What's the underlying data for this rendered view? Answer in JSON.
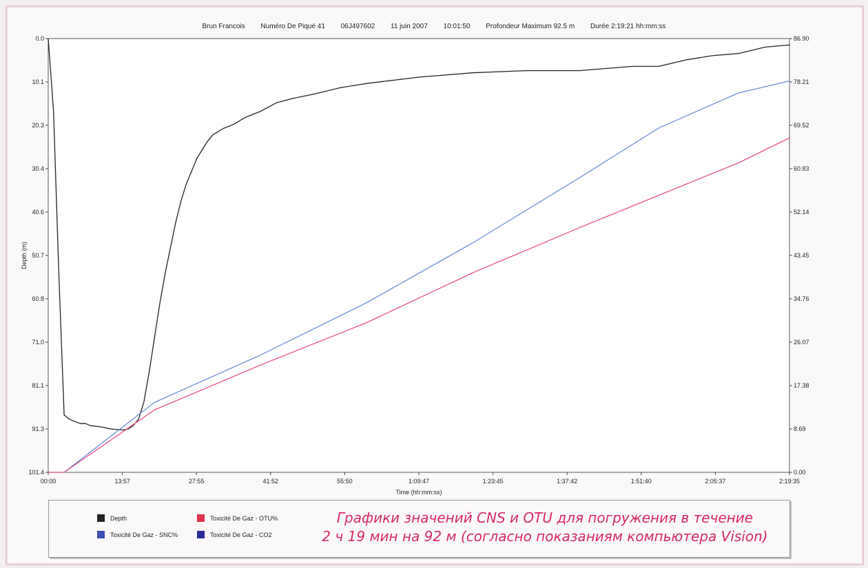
{
  "header": {
    "name": "Brun Francois",
    "dive_number": "Numéro De Piqué 41",
    "serial": "06J497602",
    "date": "11 juin 2007",
    "time": "10:01:50",
    "max_depth": "Profondeur Maximum 92.5 m",
    "duration": "Durée 2:19:21 hh:mm:ss"
  },
  "caption": {
    "line1": "Графики значений CNS и OTU для погружения в течение",
    "line2": "2 ч 19 мин на 92 м (согласно показаниям компьютера Vision)"
  },
  "legend": [
    {
      "label": "Depth",
      "color": "#222222"
    },
    {
      "label": "Toxicité De Gaz - OTU%",
      "color": "#e03050"
    },
    {
      "label": "Toxicité De Gaz - SNC%",
      "color": "#3a4fb0"
    },
    {
      "label": "Toxicité De Gaz - CO2",
      "color": "#2a2a9a"
    }
  ],
  "chart_data": {
    "type": "line",
    "xlabel": "Time (hh:mm:ss)",
    "ylabel": "Depth (m)",
    "x_ticks": [
      "00:00",
      "13:57",
      "27:55",
      "41:52",
      "55:50",
      "1:09:47",
      "1:23:45",
      "1:37:42",
      "1:51:40",
      "2:05:37",
      "2:19:35"
    ],
    "y_left_ticks": [
      "0.0",
      "10.1",
      "20.3",
      "30.4",
      "40.6",
      "50.7",
      "60.8",
      "71.0",
      "81.1",
      "91.3",
      "101.4"
    ],
    "y_left_range": [
      0,
      101.4
    ],
    "y_right_ticks": [
      "0.00",
      "8.69",
      "17.38",
      "26.07",
      "34.76",
      "43.45",
      "52.14",
      "60.83",
      "69.52",
      "78.21",
      "86.90"
    ],
    "y_right_range": [
      0,
      86.9
    ],
    "x_range_min": [
      0,
      139.58
    ],
    "series": [
      {
        "name": "Depth",
        "axis": "left",
        "color": "#222222",
        "x": [
          0,
          1,
          2,
          3,
          4,
          5,
          6,
          7,
          8,
          10,
          12,
          14,
          15,
          16,
          17,
          18,
          19,
          20,
          21,
          22,
          23,
          24,
          25,
          26,
          27,
          28,
          29,
          30,
          31,
          33,
          35,
          37,
          40,
          43,
          46,
          50,
          55,
          60,
          70,
          80,
          90,
          100,
          110,
          115,
          120,
          125,
          130,
          135,
          139.58
        ],
        "y": [
          0,
          17,
          55,
          88,
          89,
          89.5,
          90,
          90,
          90.5,
          90.8,
          91.3,
          91.5,
          91.3,
          90.5,
          89,
          85,
          78,
          70,
          62,
          55,
          49,
          43,
          38,
          34,
          31,
          28,
          26,
          24,
          22.5,
          21,
          20,
          18.5,
          17,
          15,
          14,
          13,
          11.5,
          10.5,
          9,
          8,
          7.5,
          7.5,
          6.5,
          6.5,
          5,
          4,
          3.5,
          2,
          1.5
        ]
      },
      {
        "name": "Toxicité De Gaz - SNC%",
        "axis": "right",
        "color": "#6f8fd8",
        "x": [
          0,
          3,
          20,
          40,
          60,
          80,
          100,
          115,
          130,
          139.58
        ],
        "y": [
          0,
          0,
          14,
          23.5,
          34,
          46,
          59,
          69,
          76,
          78.4
        ]
      },
      {
        "name": "Toxicité De Gaz - OTU%",
        "axis": "right",
        "color": "#e8508a",
        "x": [
          0,
          3,
          20,
          40,
          60,
          80,
          100,
          115,
          130,
          139.58
        ],
        "y": [
          0,
          0,
          12.5,
          21.5,
          30,
          40,
          49,
          55.5,
          62,
          67
        ]
      }
    ]
  }
}
